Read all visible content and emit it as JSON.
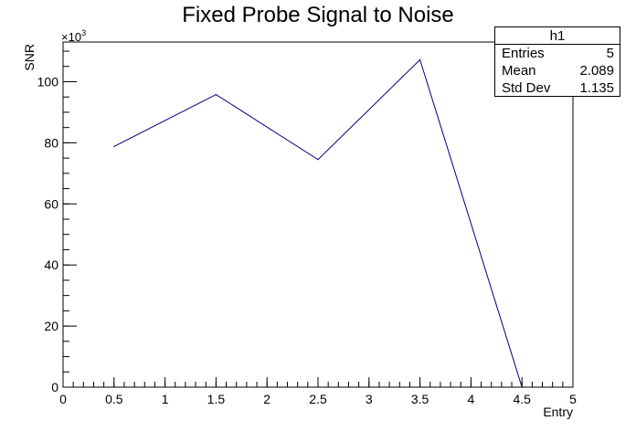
{
  "chart_data": {
    "type": "line",
    "title": "Fixed Probe Signal to Noise",
    "xlabel": "Entry",
    "ylabel": "SNR",
    "y_multiplier_label": "×10",
    "y_multiplier_exponent": "3",
    "xlim": [
      0,
      5
    ],
    "ylim": [
      0,
      113000
    ],
    "x_ticks": [
      0,
      0.5,
      1,
      1.5,
      2,
      2.5,
      3,
      3.5,
      4,
      4.5,
      5
    ],
    "x_tick_labels": [
      "0",
      "0.5",
      "1",
      "1.5",
      "2",
      "2.5",
      "3",
      "3.5",
      "4",
      "4.5",
      "5"
    ],
    "y_ticks": [
      0,
      20000,
      40000,
      60000,
      80000,
      100000
    ],
    "y_tick_labels": [
      "0",
      "20",
      "40",
      "60",
      "80",
      "100"
    ],
    "grid": false,
    "series": [
      {
        "color": "#000080",
        "x": [
          0.5,
          1.5,
          2.5,
          3.5,
          4.5
        ],
        "y": [
          78800,
          95800,
          74500,
          107200,
          0
        ]
      }
    ],
    "stats": {
      "title": "h1",
      "rows": [
        {
          "label": "Entries",
          "value": "5"
        },
        {
          "label": "Mean",
          "value": "2.089"
        },
        {
          "label": "Std Dev",
          "value": "1.135"
        }
      ]
    }
  }
}
